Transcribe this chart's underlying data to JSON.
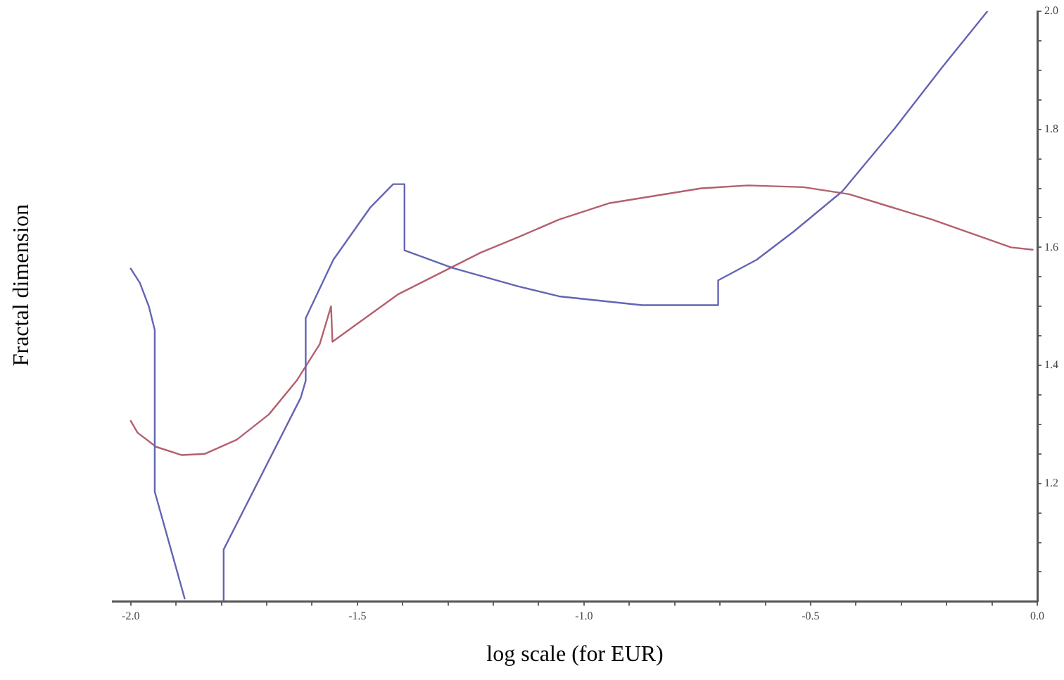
{
  "chart_data": {
    "type": "line",
    "xlabel": "log scale (for EUR)",
    "ylabel": "Fractal dimension",
    "marker": "none",
    "grid": false,
    "legend": false,
    "xlim": [
      -2.04,
      0
    ],
    "ylim": [
      1.0,
      2.0
    ],
    "xticks": [
      {
        "value": -2,
        "label": "-2.0"
      },
      {
        "value": -1.9,
        "label": null
      },
      {
        "value": -1.8,
        "label": null
      },
      {
        "value": -1.7,
        "label": null
      },
      {
        "value": -1.6,
        "label": null
      },
      {
        "value": -1.5,
        "label": "-1.5"
      },
      {
        "value": -1.4,
        "label": null
      },
      {
        "value": -1.3,
        "label": null
      },
      {
        "value": -1.2,
        "label": null
      },
      {
        "value": -1.1,
        "label": null
      },
      {
        "value": -1,
        "label": "-1.0"
      },
      {
        "value": -0.9,
        "label": null
      },
      {
        "value": -0.8,
        "label": null
      },
      {
        "value": -0.7,
        "label": null
      },
      {
        "value": -0.6,
        "label": null
      },
      {
        "value": -0.5,
        "label": "-0.5"
      },
      {
        "value": -0.4,
        "label": null
      },
      {
        "value": -0.3,
        "label": null
      },
      {
        "value": -0.2,
        "label": null
      },
      {
        "value": -0.1,
        "label": null
      },
      {
        "value": 0,
        "label": "0.0"
      }
    ],
    "yticks": [
      {
        "value": 1.05,
        "label": null
      },
      {
        "value": 1.1,
        "label": null
      },
      {
        "value": 1.15,
        "label": null
      },
      1.2,
      {
        "value": 1.25,
        "label": null
      },
      {
        "value": 1.3,
        "label": null
      },
      {
        "value": 1.35,
        "label": null
      },
      1.4,
      {
        "value": 1.45,
        "label": null
      },
      {
        "value": 1.5,
        "label": null
      },
      {
        "value": 1.55,
        "label": null
      },
      1.6,
      {
        "value": 1.65,
        "label": null
      },
      {
        "value": 1.7,
        "label": null
      },
      {
        "value": 1.75,
        "label": null
      },
      1.8,
      {
        "value": 1.85,
        "label": null
      },
      {
        "value": 1.9,
        "label": null
      },
      {
        "value": 1.95,
        "label": null
      },
      {
        "value": 2,
        "label": "2.0"
      }
    ],
    "series": [
      {
        "color": "#6464b4",
        "x": [
          -2.0,
          -1.98,
          -1.96,
          -1.947,
          -1.947,
          -1.881,
          -1.84,
          -1.795,
          -1.795,
          -1.625,
          -1.614,
          -1.614,
          -1.553,
          -1.472,
          -1.421,
          -1.396,
          -1.396,
          -1.29,
          -1.146,
          -1.055,
          -0.872,
          -0.704,
          -0.704,
          -0.619,
          -0.537,
          -0.43,
          -0.314,
          -0.21,
          -0.11
        ],
        "values": [
          1.564,
          1.54,
          1.5,
          1.46,
          1.186,
          1.005,
          null,
          1.0,
          1.088,
          1.345,
          1.374,
          1.48,
          1.579,
          1.667,
          1.707,
          1.707,
          1.595,
          1.565,
          1.534,
          1.517,
          1.502,
          1.502,
          1.544,
          1.579,
          1.627,
          1.695,
          1.802,
          1.905,
          2.0
        ]
      },
      {
        "color": "#b4606e",
        "x": [
          -2.0,
          -1.985,
          -1.944,
          -1.888,
          -1.837,
          -1.766,
          -1.695,
          -1.634,
          -1.583,
          -1.558,
          -1.555,
          -1.411,
          -1.228,
          -1.146,
          -1.055,
          -0.943,
          -0.741,
          -0.638,
          -0.516,
          -0.415,
          -0.232,
          -0.058,
          -0.01
        ],
        "values": [
          1.306,
          1.286,
          1.262,
          1.248,
          1.25,
          1.274,
          1.317,
          1.374,
          1.436,
          1.5,
          1.44,
          1.52,
          1.591,
          1.617,
          1.647,
          1.675,
          1.7,
          1.705,
          1.702,
          1.69,
          1.647,
          1.6,
          1.596
        ]
      }
    ]
  }
}
